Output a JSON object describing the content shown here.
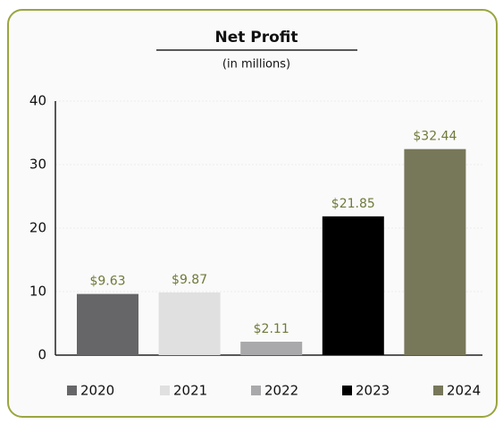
{
  "chart_data": {
    "type": "bar",
    "title": "Net Profit",
    "subtitle": "(in millions)",
    "categories": [
      "2020",
      "2021",
      "2022",
      "2023",
      "2024"
    ],
    "values": [
      9.63,
      9.87,
      2.11,
      21.85,
      32.44
    ],
    "value_labels": [
      "$9.63",
      "$9.87",
      "$2.11",
      "$21.85",
      "$32.44"
    ],
    "colors": [
      "#666668",
      "#e0e0e0",
      "#a9a9ab",
      "#000000",
      "#77775a"
    ],
    "ylim": [
      0,
      40
    ],
    "yticks": [
      0,
      10,
      20,
      30,
      40
    ],
    "grid": true,
    "legend": "bottom"
  }
}
